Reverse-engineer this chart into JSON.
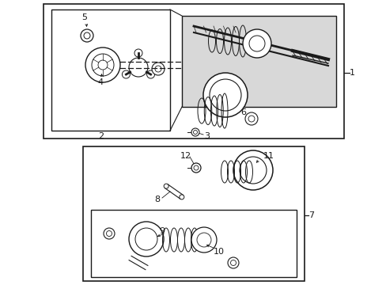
{
  "bg_color": "#ffffff",
  "line_color": "#1a1a1a",
  "gray_fill": "#d8d8d8",
  "fig_w": 4.89,
  "fig_h": 3.6,
  "dpi": 100
}
